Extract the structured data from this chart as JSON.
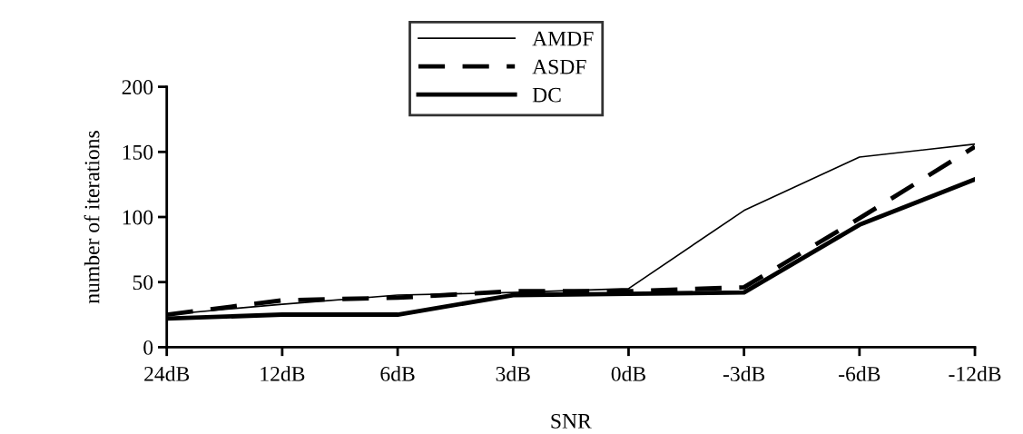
{
  "chart_data": {
    "type": "line",
    "xlabel": "SNR",
    "ylabel": "number of iterations",
    "categories": [
      "24dB",
      "12dB",
      "6dB",
      "3dB",
      "0dB",
      "-3dB",
      "-6dB",
      "-12dB"
    ],
    "series": [
      {
        "name": "AMDF",
        "color": "#000000",
        "line_style": "solid",
        "values": [
          25,
          33,
          40,
          42,
          45,
          105,
          146,
          156
        ]
      },
      {
        "name": "ASDF",
        "color": "#000000",
        "line_style": "dashed",
        "values": [
          25,
          36,
          38,
          43,
          43,
          46,
          99,
          154
        ]
      },
      {
        "name": "DC",
        "color": "#000000",
        "line_style": "solid",
        "values": [
          22,
          25,
          25,
          40,
          41,
          42,
          94,
          129
        ]
      }
    ],
    "ylim": [
      0,
      200
    ],
    "yticks": [
      0,
      50,
      100,
      150,
      200
    ],
    "grid": false,
    "legend": "top",
    "marker": "none"
  }
}
